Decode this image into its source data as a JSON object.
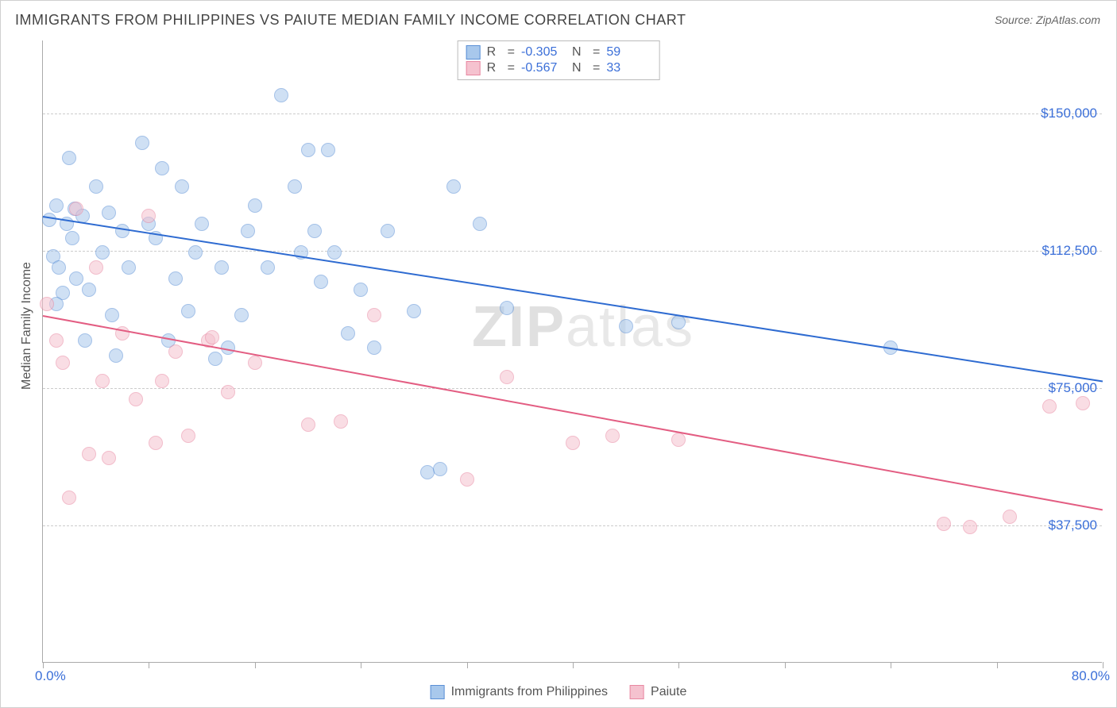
{
  "title": "IMMIGRANTS FROM PHILIPPINES VS PAIUTE MEDIAN FAMILY INCOME CORRELATION CHART",
  "source": "Source: ZipAtlas.com",
  "y_axis_title": "Median Family Income",
  "watermark_a": "ZIP",
  "watermark_b": "atlas",
  "chart": {
    "type": "scatter",
    "xlim": [
      0,
      80
    ],
    "ylim": [
      0,
      170000
    ],
    "x_ticks": [
      0,
      8,
      16,
      24,
      32,
      40,
      48,
      56,
      64,
      72,
      80
    ],
    "y_gridlines": [
      37500,
      75000,
      112500,
      150000
    ],
    "y_labels": [
      "$37,500",
      "$75,000",
      "$112,500",
      "$150,000"
    ],
    "x_label_min": "0.0%",
    "x_label_max": "80.0%",
    "background_color": "#ffffff",
    "grid_color": "#cccccc",
    "marker_radius": 9,
    "marker_opacity": 0.55,
    "series": [
      {
        "name": "Immigrants from Philippines",
        "color_fill": "#a8c8ec",
        "color_stroke": "#5a8fd6",
        "trend_color": "#2e6bd1",
        "R": "-0.305",
        "N": "59",
        "trend": {
          "x1": 0,
          "y1": 122000,
          "x2": 80,
          "y2": 77000
        },
        "points": [
          [
            0.5,
            121000
          ],
          [
            0.8,
            111000
          ],
          [
            1.0,
            125000
          ],
          [
            1.2,
            108000
          ],
          [
            1.5,
            101000
          ],
          [
            1.8,
            120000
          ],
          [
            2.0,
            138000
          ],
          [
            2.2,
            116000
          ],
          [
            2.4,
            124000
          ],
          [
            2.5,
            105000
          ],
          [
            3.0,
            122000
          ],
          [
            3.2,
            88000
          ],
          [
            3.5,
            102000
          ],
          [
            4.0,
            130000
          ],
          [
            4.5,
            112000
          ],
          [
            5.0,
            123000
          ],
          [
            5.2,
            95000
          ],
          [
            5.5,
            84000
          ],
          [
            6.0,
            118000
          ],
          [
            6.5,
            108000
          ],
          [
            7.5,
            142000
          ],
          [
            8.0,
            120000
          ],
          [
            8.5,
            116000
          ],
          [
            9.0,
            135000
          ],
          [
            9.5,
            88000
          ],
          [
            10.0,
            105000
          ],
          [
            10.5,
            130000
          ],
          [
            11.0,
            96000
          ],
          [
            11.5,
            112000
          ],
          [
            12.0,
            120000
          ],
          [
            13.0,
            83000
          ],
          [
            13.5,
            108000
          ],
          [
            14.0,
            86000
          ],
          [
            15.0,
            95000
          ],
          [
            15.5,
            118000
          ],
          [
            16.0,
            125000
          ],
          [
            17.0,
            108000
          ],
          [
            18.0,
            155000
          ],
          [
            19.0,
            130000
          ],
          [
            19.5,
            112000
          ],
          [
            20.0,
            140000
          ],
          [
            20.5,
            118000
          ],
          [
            21.0,
            104000
          ],
          [
            21.5,
            140000
          ],
          [
            22.0,
            112000
          ],
          [
            23.0,
            90000
          ],
          [
            24.0,
            102000
          ],
          [
            25.0,
            86000
          ],
          [
            26.0,
            118000
          ],
          [
            28.0,
            96000
          ],
          [
            29.0,
            52000
          ],
          [
            30.0,
            53000
          ],
          [
            31.0,
            130000
          ],
          [
            33.0,
            120000
          ],
          [
            35.0,
            97000
          ],
          [
            44.0,
            92000
          ],
          [
            48.0,
            93000
          ],
          [
            64.0,
            86000
          ],
          [
            1.0,
            98000
          ]
        ]
      },
      {
        "name": "Paiute",
        "color_fill": "#f5c2cf",
        "color_stroke": "#e887a1",
        "trend_color": "#e35d82",
        "R": "-0.567",
        "N": "33",
        "trend": {
          "x1": 0,
          "y1": 95000,
          "x2": 80,
          "y2": 42000
        },
        "points": [
          [
            0.3,
            98000
          ],
          [
            1.0,
            88000
          ],
          [
            1.5,
            82000
          ],
          [
            2.0,
            45000
          ],
          [
            2.5,
            124000
          ],
          [
            3.5,
            57000
          ],
          [
            4.0,
            108000
          ],
          [
            4.5,
            77000
          ],
          [
            5.0,
            56000
          ],
          [
            6.0,
            90000
          ],
          [
            7.0,
            72000
          ],
          [
            8.0,
            122000
          ],
          [
            8.5,
            60000
          ],
          [
            9.0,
            77000
          ],
          [
            10.0,
            85000
          ],
          [
            11.0,
            62000
          ],
          [
            12.5,
            88000
          ],
          [
            12.8,
            89000
          ],
          [
            14.0,
            74000
          ],
          [
            16.0,
            82000
          ],
          [
            20.0,
            65000
          ],
          [
            22.5,
            66000
          ],
          [
            25.0,
            95000
          ],
          [
            32.0,
            50000
          ],
          [
            35.0,
            78000
          ],
          [
            40.0,
            60000
          ],
          [
            43.0,
            62000
          ],
          [
            48.0,
            61000
          ],
          [
            68.0,
            38000
          ],
          [
            70.0,
            37000
          ],
          [
            73.0,
            40000
          ],
          [
            76.0,
            70000
          ],
          [
            78.5,
            71000
          ]
        ]
      }
    ],
    "legend_top": {
      "r_label": "R",
      "n_label": "N",
      "eq": "="
    },
    "legend_bottom": {
      "items": [
        "Immigrants from Philippines",
        "Paiute"
      ]
    }
  }
}
